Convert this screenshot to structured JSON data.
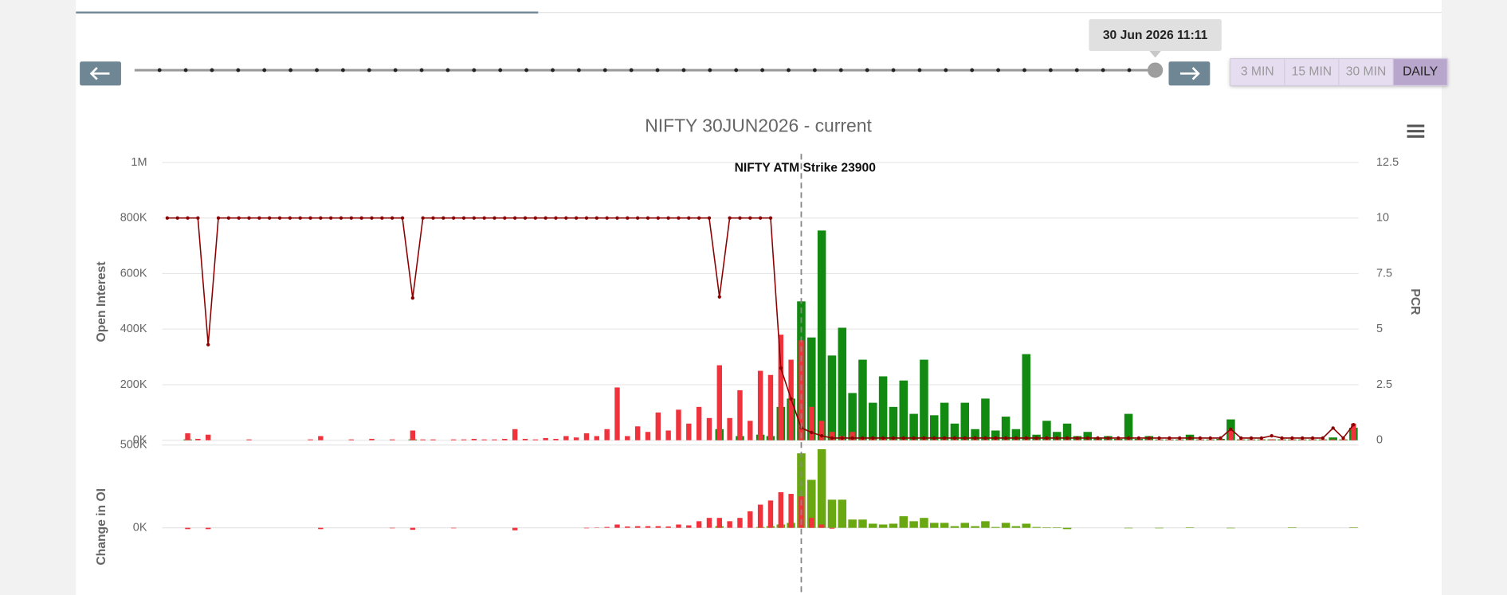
{
  "ui": {
    "tooltip": "30 Jun 2026 11:11",
    "intervals": [
      "3 MIN",
      "15 MIN",
      "30 MIN",
      "DAILY"
    ]
  },
  "chart_data": [
    {
      "type": "bar",
      "title": "NIFTY 30JUN2026 - current",
      "annotation": "NIFTY ATM Strike 23900",
      "y_label": "Open Interest",
      "y2_label": "PCR",
      "categories": [
        null,
        null,
        null,
        null,
        null,
        null,
        null,
        null,
        null,
        null,
        null,
        null,
        null,
        null,
        null,
        null,
        null,
        null,
        null,
        null,
        null,
        null,
        null,
        null,
        null,
        null,
        null,
        null,
        null,
        null,
        null,
        null,
        null,
        null,
        null,
        null,
        null,
        null,
        null,
        null,
        null,
        null,
        null,
        null,
        null,
        null,
        null,
        null,
        null,
        null,
        null,
        null,
        null,
        null,
        null,
        null,
        null,
        null,
        null,
        null,
        null,
        null,
        null,
        null,
        null,
        null,
        null,
        null,
        null,
        null,
        null,
        null,
        null,
        null,
        null,
        null,
        null,
        null,
        null,
        null,
        null,
        null,
        null,
        null,
        null,
        null,
        null,
        null,
        null,
        null,
        null,
        null,
        null,
        null,
        null,
        null,
        null,
        null,
        null,
        null,
        null,
        null,
        null,
        null,
        null,
        null,
        null,
        null,
        null,
        null,
        null,
        null,
        null,
        null,
        null,
        null,
        null
      ],
      "ylim": [
        0,
        1000000
      ],
      "yticks": [
        {
          "value": 0,
          "label": "0K"
        },
        {
          "value": 200000,
          "label": "200K"
        },
        {
          "value": 400000,
          "label": "400K"
        },
        {
          "value": 600000,
          "label": "600K"
        },
        {
          "value": 800000,
          "label": "800K"
        },
        {
          "value": 1000000,
          "label": "1M"
        }
      ],
      "y2lim": [
        0,
        12.5
      ],
      "y2ticks": [
        0,
        2.5,
        5,
        7.5,
        10,
        12.5
      ],
      "grid": true,
      "series": [
        {
          "type": "bar",
          "color": "#128a12",
          "values": [
            0,
            0,
            3000,
            0,
            0,
            0,
            0,
            0,
            0,
            0,
            0,
            0,
            0,
            0,
            0,
            0,
            0,
            0,
            0,
            0,
            0,
            0,
            0,
            0,
            3000,
            0,
            0,
            0,
            0,
            0,
            0,
            0,
            0,
            0,
            0,
            0,
            0,
            0,
            0,
            0,
            0,
            0,
            0,
            0,
            0,
            0,
            0,
            0,
            0,
            0,
            0,
            0,
            0,
            0,
            40000,
            0,
            15000,
            0,
            20000,
            15000,
            120000,
            150000,
            500000,
            370000,
            755000,
            305000,
            405000,
            170000,
            290000,
            135000,
            230000,
            120000,
            215000,
            95000,
            290000,
            90000,
            135000,
            60000,
            135000,
            40000,
            150000,
            35000,
            85000,
            40000,
            310000,
            20000,
            70000,
            30000,
            60000,
            15000,
            30000,
            10000,
            15000,
            5000,
            95000,
            5000,
            15000,
            3000,
            3000,
            3000,
            20000,
            3000,
            3000,
            5000,
            75000,
            3000,
            3000,
            3000,
            3000,
            3000,
            3000,
            3000,
            3000,
            3000,
            10000,
            3000,
            45000
          ]
        },
        {
          "type": "bar",
          "color": "#f0323c",
          "values": [
            0,
            0,
            25000,
            5000,
            20000,
            0,
            0,
            0,
            3000,
            0,
            0,
            0,
            0,
            0,
            3000,
            15000,
            0,
            0,
            3000,
            0,
            5000,
            0,
            3000,
            0,
            35000,
            3000,
            3000,
            0,
            3000,
            3000,
            5000,
            3000,
            3000,
            5000,
            40000,
            5000,
            3000,
            8000,
            5000,
            15000,
            10000,
            25000,
            15000,
            40000,
            190000,
            15000,
            50000,
            30000,
            100000,
            35000,
            110000,
            60000,
            120000,
            80000,
            270000,
            80000,
            180000,
            70000,
            250000,
            235000,
            380000,
            290000,
            360000,
            120000,
            70000,
            30000,
            15000,
            30000,
            10000,
            5000,
            5000,
            3000,
            3000,
            3000,
            3000,
            3000,
            3000,
            3000,
            3000,
            3000,
            3000,
            3000,
            3000,
            3000,
            3000,
            3000,
            3000,
            3000,
            3000,
            3000,
            3000,
            3000,
            3000,
            3000,
            3000,
            3000,
            3000,
            3000,
            3000,
            3000,
            3000,
            3000,
            3000,
            3000,
            40000,
            3000,
            3000,
            3000,
            3000,
            3000,
            3000,
            3000,
            3000,
            3000,
            3000,
            3000,
            60000
          ]
        },
        {
          "type": "line",
          "axis": "y2",
          "color": "#8b0000",
          "values": [
            10,
            10,
            10,
            10,
            4.3,
            10,
            10,
            10,
            10,
            10,
            10,
            10,
            10,
            10,
            10,
            10,
            10,
            10,
            10,
            10,
            10,
            10,
            10,
            10,
            6.4,
            10,
            10,
            10,
            10,
            10,
            10,
            10,
            10,
            10,
            10,
            10,
            10,
            10,
            10,
            10,
            10,
            10,
            10,
            10,
            10,
            10,
            10,
            10,
            10,
            10,
            10,
            10,
            10,
            10,
            6.45,
            10,
            10,
            10,
            10,
            10,
            3.25,
            1.86,
            0.56,
            0.35,
            0.2,
            0.1,
            0.1,
            0.1,
            0.1,
            0.1,
            0.1,
            0.1,
            0.1,
            0.1,
            0.1,
            0.1,
            0.1,
            0.1,
            0.1,
            0.1,
            0.1,
            0.1,
            0.1,
            0.1,
            0.1,
            0.1,
            0.1,
            0.1,
            0.1,
            0.1,
            0.1,
            0.1,
            0.1,
            0.1,
            0.1,
            0.1,
            0.1,
            0.1,
            0.1,
            0.1,
            0.1,
            0.1,
            0.1,
            0.1,
            0.5,
            0.1,
            0.1,
            0.1,
            0.2,
            0.1,
            0.1,
            0.1,
            0.1,
            0.1,
            0.55,
            0.1,
            0.7
          ]
        }
      ]
    },
    {
      "type": "bar",
      "y_label": "Change in OI",
      "ylim": [
        -400000,
        500000
      ],
      "yticks": [
        {
          "value": 0,
          "label": "0K"
        },
        {
          "value": 500000,
          "label": "500K"
        }
      ],
      "grid": true,
      "series": [
        {
          "type": "bar",
          "color": "#6aa812",
          "values": [
            0,
            0,
            0,
            0,
            0,
            0,
            0,
            0,
            0,
            0,
            0,
            0,
            0,
            0,
            0,
            0,
            0,
            0,
            0,
            0,
            0,
            0,
            0,
            0,
            0,
            0,
            0,
            0,
            0,
            0,
            0,
            0,
            0,
            0,
            0,
            0,
            0,
            0,
            0,
            0,
            0,
            0,
            0,
            0,
            0,
            0,
            0,
            0,
            0,
            0,
            0,
            0,
            0,
            0,
            10000,
            0,
            0,
            0,
            5000,
            10000,
            20000,
            30000,
            450000,
            290000,
            475000,
            170000,
            170000,
            50000,
            50000,
            25000,
            20000,
            25000,
            70000,
            40000,
            60000,
            30000,
            30000,
            10000,
            30000,
            10000,
            40000,
            5000,
            30000,
            10000,
            25000,
            5000,
            3000,
            3000,
            -8000,
            0,
            0,
            0,
            0,
            0,
            -3000,
            0,
            0,
            -3000,
            0,
            0,
            3000,
            0,
            0,
            0,
            -3000,
            0,
            0,
            0,
            0,
            0,
            3000,
            0,
            0,
            0,
            0,
            0,
            3000
          ]
        },
        {
          "type": "bar",
          "color": "#f0323c",
          "values": [
            0,
            0,
            -8000,
            0,
            -8000,
            0,
            0,
            0,
            0,
            0,
            0,
            0,
            0,
            0,
            0,
            -8000,
            0,
            0,
            0,
            0,
            0,
            0,
            -3000,
            0,
            -12000,
            0,
            0,
            0,
            -3000,
            0,
            0,
            0,
            0,
            0,
            -15000,
            0,
            0,
            0,
            0,
            0,
            0,
            -3000,
            2000,
            5000,
            20000,
            8000,
            10000,
            10000,
            10000,
            8000,
            20000,
            15000,
            40000,
            60000,
            60000,
            40000,
            60000,
            100000,
            140000,
            165000,
            215000,
            205000,
            190000,
            60000,
            20000,
            -5000,
            0,
            0,
            0,
            0,
            0,
            0,
            0,
            0,
            0,
            0,
            0,
            0,
            0,
            0,
            0,
            0,
            0,
            0,
            0,
            0,
            0,
            0,
            0,
            0,
            0,
            0,
            0,
            0,
            0,
            0,
            0,
            0,
            0,
            0,
            0,
            0,
            0,
            0,
            0,
            0,
            0,
            0,
            0,
            0,
            0,
            0,
            0,
            0,
            0,
            0,
            0
          ]
        }
      ]
    }
  ]
}
